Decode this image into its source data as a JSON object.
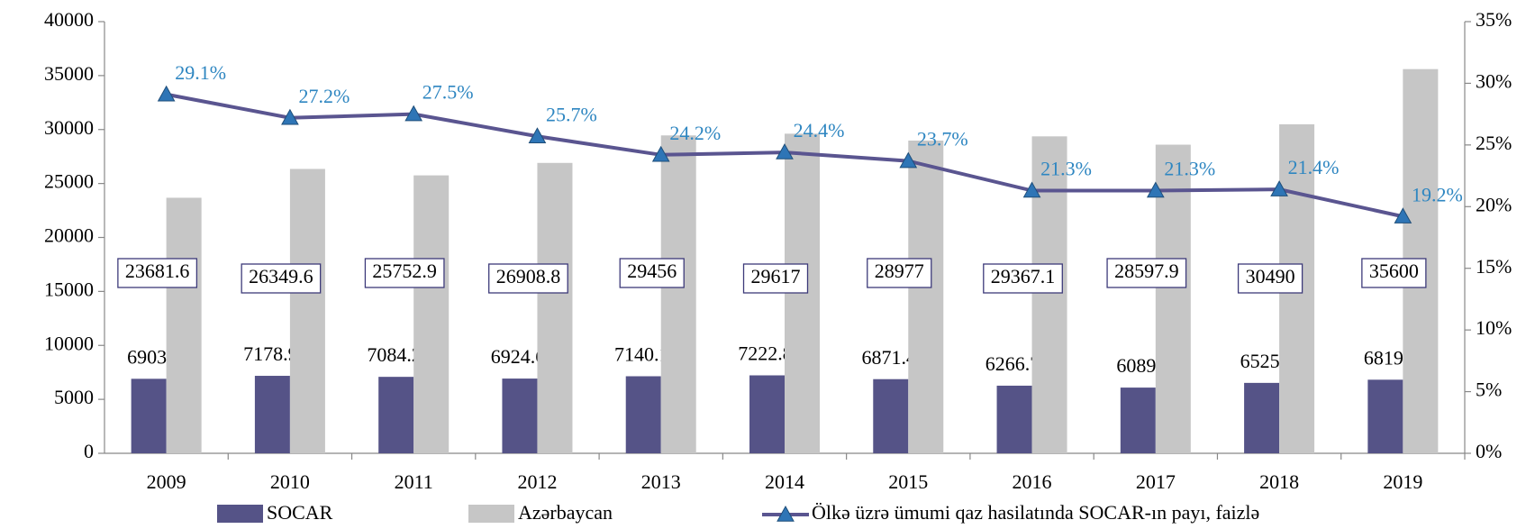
{
  "chart_data": {
    "type": "bar",
    "categories": [
      "2009",
      "2010",
      "2011",
      "2012",
      "2013",
      "2014",
      "2015",
      "2016",
      "2017",
      "2018",
      "2019"
    ],
    "series": [
      {
        "name": "SOCAR",
        "type": "bar",
        "color": "#555387",
        "values": [
          6903,
          7178.9,
          7084.2,
          6924.6,
          7140.1,
          7222.8,
          6871.4,
          6266.7,
          6089,
          6525,
          6819
        ]
      },
      {
        "name": "Azərbaycan",
        "type": "bar",
        "color": "#c6c6c6",
        "values": [
          23681.6,
          26349.6,
          25752.9,
          26908.8,
          29456,
          29617,
          28977,
          29367.1,
          28597.9,
          30490,
          35600
        ]
      },
      {
        "name": "Ölkə üzrə ümumi qaz hasilatında SOCAR-ın payı, faizlə",
        "type": "line",
        "axis": "y2",
        "color": "#5a5590",
        "marker_color": "#2e75b6",
        "values": [
          29.1,
          27.2,
          27.5,
          25.7,
          24.2,
          24.4,
          23.7,
          21.3,
          21.3,
          21.4,
          19.2
        ],
        "value_labels": [
          "29.1%",
          "27.2%",
          "27.5%",
          "25.7%",
          "24.2%",
          "24.4%",
          "23.7%",
          "21.3%",
          "21.3%",
          "21.4%",
          "19.2%"
        ]
      }
    ],
    "ylim": [
      0,
      40000
    ],
    "yticks": [
      0,
      5000,
      10000,
      15000,
      20000,
      25000,
      30000,
      35000,
      40000
    ],
    "y2lim": [
      0,
      35
    ],
    "y2ticks": [
      {
        "value": 0,
        "label": "0%"
      },
      {
        "value": 5,
        "label": "5%"
      },
      {
        "value": 10,
        "label": "10%"
      },
      {
        "value": 15,
        "label": "15%"
      },
      {
        "value": 20,
        "label": "20%"
      },
      {
        "value": 25,
        "label": "25%"
      },
      {
        "value": 30,
        "label": "30%"
      },
      {
        "value": 35,
        "label": "35%"
      }
    ],
    "grid": false,
    "legend": "bottom"
  }
}
